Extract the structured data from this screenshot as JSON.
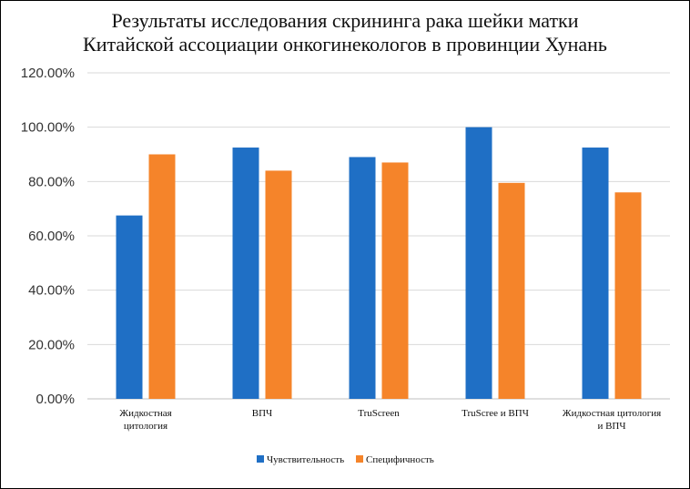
{
  "chart_data": {
    "type": "bar",
    "title_lines": [
      "Результаты исследования скрининга рака шейки матки",
      "Китайской ассоциации онкогинекологов в провинции Хунань"
    ],
    "categories": [
      [
        "Жидкостная",
        "цитология"
      ],
      [
        "ВПЧ"
      ],
      [
        "TruScreen"
      ],
      [
        "TruScree и ВПЧ"
      ],
      [
        "Жидкостная цитология",
        "и ВПЧ"
      ]
    ],
    "series": [
      {
        "name": "Чувствительность",
        "color": "#1f6fc5",
        "values": [
          0.675,
          0.925,
          0.89,
          1.0,
          0.925
        ]
      },
      {
        "name": "Специфичность",
        "color": "#f5842a",
        "values": [
          0.9,
          0.84,
          0.87,
          0.795,
          0.76
        ]
      }
    ],
    "ylim": [
      0,
      1.2
    ],
    "yticks": [
      "0.00%",
      "20.00%",
      "40.00%",
      "60.00%",
      "80.00%",
      "100.00%",
      "120.00%"
    ],
    "grid": true,
    "legend_position": "bottom"
  }
}
